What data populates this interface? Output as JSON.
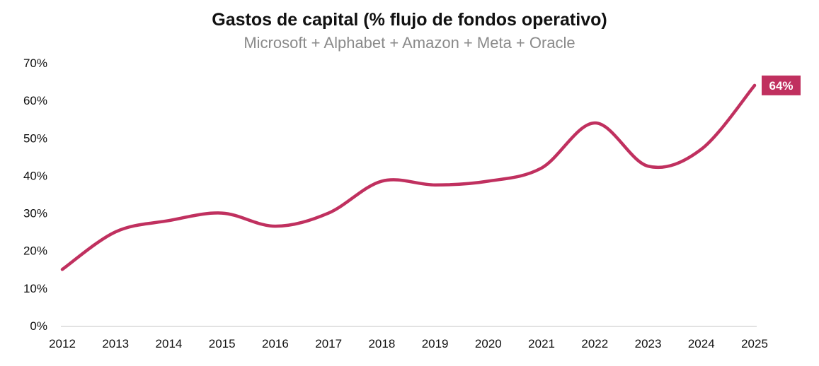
{
  "chart_data": {
    "type": "line",
    "title": "Gastos de capital (% flujo de fondos operativo)",
    "subtitle": "Microsoft + Alphabet + Amazon + Meta + Oracle",
    "xlabel": "",
    "ylabel": "",
    "x": [
      "2012",
      "2013",
      "2014",
      "2015",
      "2016",
      "2017",
      "2018",
      "2019",
      "2020",
      "2021",
      "2022",
      "2023",
      "2024",
      "2025"
    ],
    "series": [
      {
        "name": "Gastos de capital",
        "values": [
          15,
          25,
          28,
          30,
          26.5,
          30,
          38.5,
          37.5,
          38.5,
          42,
          54,
          42.5,
          47,
          64
        ]
      }
    ],
    "yticks": [
      "0%",
      "10%",
      "20%",
      "30%",
      "40%",
      "50%",
      "60%",
      "70%"
    ],
    "ylim": [
      0,
      70
    ],
    "end_label": "64%",
    "color": "#c0305f",
    "grid": false
  }
}
